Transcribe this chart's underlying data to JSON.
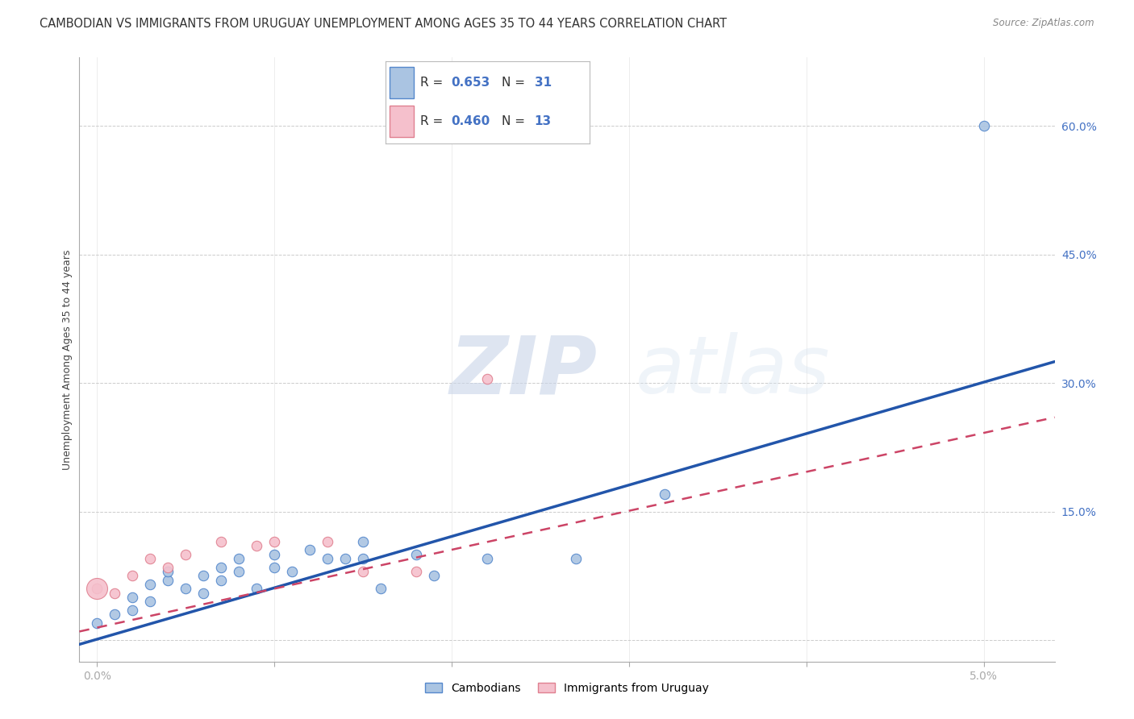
{
  "title": "CAMBODIAN VS IMMIGRANTS FROM URUGUAY UNEMPLOYMENT AMONG AGES 35 TO 44 YEARS CORRELATION CHART",
  "source": "Source: ZipAtlas.com",
  "ylabel": "Unemployment Among Ages 35 to 44 years",
  "x_ticks": [
    0.0,
    0.01,
    0.02,
    0.03,
    0.04,
    0.05
  ],
  "y_ticks": [
    0.0,
    0.15,
    0.3,
    0.45,
    0.6
  ],
  "y_tick_labels": [
    "",
    "15.0%",
    "30.0%",
    "45.0%",
    "60.0%"
  ],
  "xlim": [
    -0.001,
    0.054
  ],
  "ylim": [
    -0.025,
    0.68
  ],
  "cambodian_R": 0.653,
  "cambodian_N": 31,
  "uruguay_R": 0.46,
  "uruguay_N": 13,
  "cambodian_color": "#aac4e2",
  "cambodian_edge_color": "#5588cc",
  "cambodian_line_color": "#2255aa",
  "uruguay_color": "#f5c0cc",
  "uruguay_edge_color": "#e08090",
  "uruguay_line_color": "#cc4466",
  "watermark_zip": "ZIP",
  "watermark_atlas": "atlas",
  "grid_color": "#cccccc",
  "background_color": "#ffffff",
  "title_fontsize": 10.5,
  "axis_label_fontsize": 9,
  "tick_fontsize": 10,
  "legend_fontsize": 11,
  "cambodian_x": [
    0.0,
    0.001,
    0.002,
    0.002,
    0.003,
    0.003,
    0.004,
    0.004,
    0.005,
    0.006,
    0.006,
    0.007,
    0.007,
    0.008,
    0.008,
    0.009,
    0.01,
    0.01,
    0.011,
    0.012,
    0.013,
    0.014,
    0.015,
    0.015,
    0.016,
    0.018,
    0.019,
    0.022,
    0.027,
    0.032,
    0.05
  ],
  "cambodian_y": [
    0.02,
    0.03,
    0.035,
    0.05,
    0.045,
    0.065,
    0.07,
    0.08,
    0.06,
    0.055,
    0.075,
    0.07,
    0.085,
    0.08,
    0.095,
    0.06,
    0.085,
    0.1,
    0.08,
    0.105,
    0.095,
    0.095,
    0.095,
    0.115,
    0.06,
    0.1,
    0.075,
    0.095,
    0.095,
    0.17,
    0.6
  ],
  "uruguay_x": [
    0.0,
    0.001,
    0.002,
    0.003,
    0.004,
    0.005,
    0.007,
    0.009,
    0.01,
    0.013,
    0.015,
    0.018,
    0.022
  ],
  "uruguay_y": [
    0.06,
    0.055,
    0.075,
    0.095,
    0.085,
    0.1,
    0.115,
    0.11,
    0.115,
    0.115,
    0.08,
    0.08,
    0.305
  ],
  "camb_line_x0": -0.001,
  "camb_line_y0": -0.005,
  "camb_line_x1": 0.054,
  "camb_line_y1": 0.325,
  "urug_line_x0": -0.001,
  "urug_line_y0": 0.01,
  "urug_line_x1": 0.054,
  "urug_line_y1": 0.26
}
